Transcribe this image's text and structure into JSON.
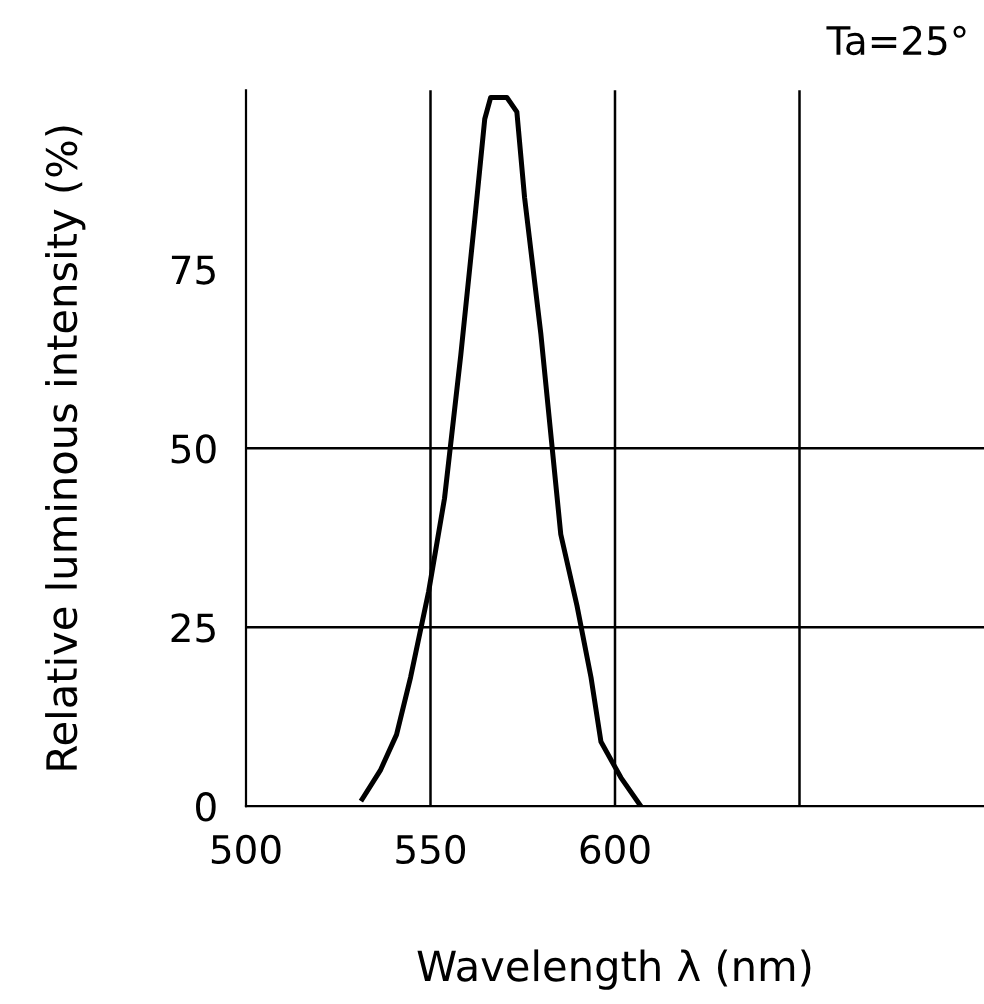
{
  "chart_data": {
    "type": "line",
    "xlabel": "Wavelength λ (nm)",
    "ylabel": "Relative luminous intensity (%)",
    "annotations": [
      "Ta=25°"
    ],
    "x": [
      531.5,
      536.4,
      540.8,
      544.6,
      549.5,
      553.8,
      558.2,
      562,
      564.7,
      566.3,
      570.7,
      573.4,
      575.5,
      579.9,
      585.3,
      589.7,
      593.5,
      596.2,
      601.6,
      607
    ],
    "series": [
      {
        "color": "#000000",
        "values": [
          1,
          5,
          10,
          18,
          30,
          43,
          63,
          82,
          96,
          99,
          99,
          97,
          85,
          66,
          38,
          28,
          18,
          9,
          4,
          0
        ]
      }
    ],
    "xlim": [
      500,
      700
    ],
    "xticks": [
      500,
      550,
      600
    ],
    "ylim": [
      0,
      100
    ],
    "yticks": [
      0,
      25,
      50,
      75
    ],
    "ref_lines": [
      {
        "axis": "x",
        "value": 550,
        "color": "#000000"
      },
      {
        "axis": "x",
        "value": 600,
        "color": "#000000"
      },
      {
        "axis": "x",
        "value": 650,
        "color": "#000000"
      },
      {
        "axis": "y",
        "value": 25,
        "color": "#000000"
      },
      {
        "axis": "y",
        "value": 50,
        "color": "#000000"
      }
    ],
    "grid": false,
    "legend": false,
    "marker": "none",
    "line_style": "solid"
  }
}
